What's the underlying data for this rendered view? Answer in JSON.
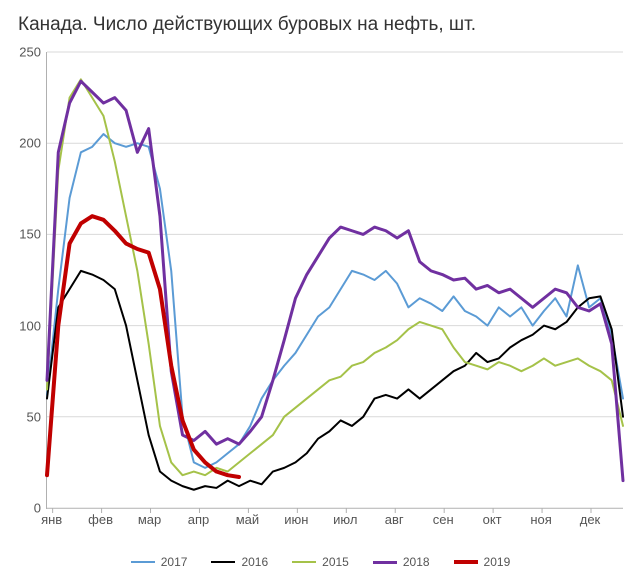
{
  "chart": {
    "type": "line",
    "title": "Канада. Число действующих буровых на нефть, шт.",
    "title_fontsize": 19,
    "background_color": "#ffffff",
    "grid_color": "#d9d9d9",
    "axis_color": "#b0b0b0",
    "label_color": "#555555",
    "label_fontsize": 13,
    "ylim": [
      0,
      250
    ],
    "ytick_step": 50,
    "yticks": [
      0,
      50,
      100,
      150,
      200,
      250
    ],
    "x_labels": [
      "янв",
      "фев",
      "мар",
      "апр",
      "май",
      "июн",
      "июл",
      "авг",
      "сен",
      "окт",
      "ноя",
      "дек"
    ],
    "x_count": 52,
    "legend_position": "bottom",
    "series": [
      {
        "name": "2017",
        "color": "#5b9bd5",
        "width": 2,
        "values": [
          62,
          120,
          170,
          195,
          198,
          205,
          200,
          198,
          200,
          198,
          175,
          130,
          50,
          25,
          22,
          25,
          30,
          35,
          45,
          60,
          70,
          78,
          85,
          95,
          105,
          110,
          120,
          130,
          128,
          125,
          130,
          123,
          110,
          115,
          112,
          108,
          116,
          108,
          105,
          100,
          110,
          105,
          110,
          100,
          108,
          115,
          105,
          133,
          110,
          115,
          95,
          60
        ]
      },
      {
        "name": "2016",
        "color": "#000000",
        "width": 2,
        "values": [
          60,
          110,
          120,
          130,
          128,
          125,
          120,
          100,
          70,
          40,
          20,
          15,
          12,
          10,
          12,
          11,
          15,
          12,
          15,
          13,
          20,
          22,
          25,
          30,
          38,
          42,
          48,
          45,
          50,
          60,
          62,
          60,
          65,
          60,
          65,
          70,
          75,
          78,
          85,
          80,
          82,
          88,
          92,
          95,
          100,
          98,
          102,
          110,
          115,
          116,
          98,
          50
        ]
      },
      {
        "name": "2015",
        "color": "#a5c249",
        "width": 2,
        "values": [
          65,
          185,
          225,
          235,
          225,
          215,
          190,
          160,
          130,
          90,
          45,
          25,
          18,
          20,
          18,
          22,
          20,
          25,
          30,
          35,
          40,
          50,
          55,
          60,
          65,
          70,
          72,
          78,
          80,
          85,
          88,
          92,
          98,
          102,
          100,
          98,
          88,
          80,
          78,
          76,
          80,
          78,
          75,
          78,
          82,
          78,
          80,
          82,
          78,
          75,
          70,
          45
        ]
      },
      {
        "name": "2018",
        "color": "#7030a0",
        "width": 3,
        "values": [
          70,
          195,
          222,
          234,
          228,
          222,
          225,
          218,
          195,
          208,
          160,
          75,
          40,
          37,
          42,
          35,
          38,
          35,
          42,
          50,
          70,
          92,
          115,
          128,
          138,
          148,
          154,
          152,
          150,
          154,
          152,
          148,
          152,
          135,
          130,
          128,
          125,
          126,
          120,
          122,
          118,
          120,
          115,
          110,
          115,
          120,
          118,
          110,
          108,
          112,
          90,
          15
        ]
      },
      {
        "name": "2019",
        "color": "#c00000",
        "width": 4,
        "values": [
          18,
          100,
          145,
          156,
          160,
          158,
          152,
          145,
          142,
          140,
          120,
          78,
          48,
          32,
          25,
          20,
          18,
          17
        ]
      }
    ]
  }
}
